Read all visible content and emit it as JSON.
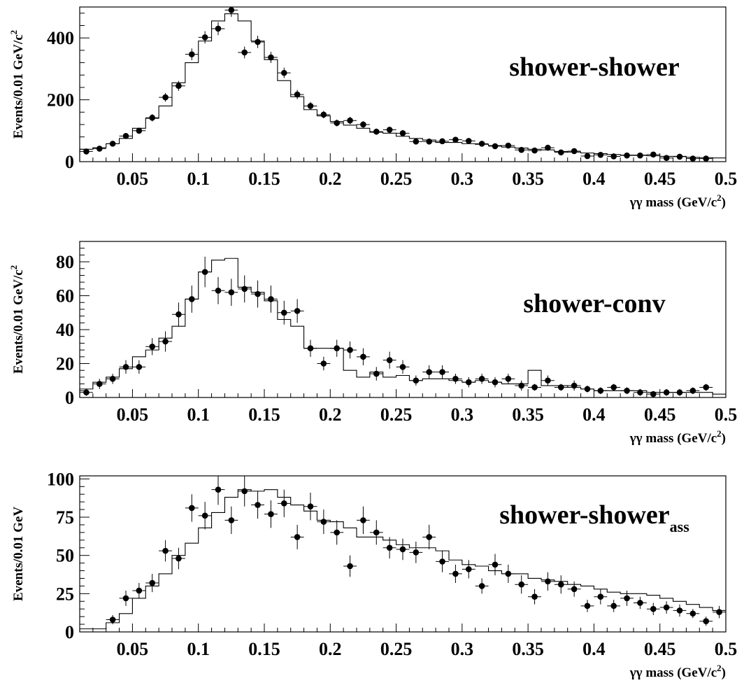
{
  "chart_data": [
    {
      "type": "scatter",
      "title": "shower-shower",
      "title_subscript": "",
      "xlabel": "γγ mass (GeV/c²)",
      "xlabel_main": "γγ mass (GeV/c",
      "xlabel_sup": "2",
      "xlabel_end": ")",
      "ylabel": "Events/0.01 GeV/c²",
      "ylabel_main": "Events/0.01 GeV/c",
      "ylabel_sup": "2",
      "xlim": [
        0.01,
        0.5
      ],
      "ylim": [
        0,
        500
      ],
      "xticks": [
        "0.05",
        "0.1",
        "0.15",
        "0.2",
        "0.25",
        "0.3",
        "0.35",
        "0.4",
        "0.45",
        "0.5"
      ],
      "yticks": [
        "0",
        "200",
        "400"
      ],
      "ytick_values": [
        0,
        200,
        400
      ],
      "series": [
        {
          "kind": "data-points",
          "x": [
            0.015,
            0.025,
            0.035,
            0.045,
            0.055,
            0.065,
            0.075,
            0.085,
            0.095,
            0.105,
            0.115,
            0.125,
            0.135,
            0.145,
            0.155,
            0.165,
            0.175,
            0.185,
            0.195,
            0.205,
            0.215,
            0.225,
            0.235,
            0.245,
            0.255,
            0.265,
            0.275,
            0.285,
            0.295,
            0.305,
            0.315,
            0.325,
            0.335,
            0.345,
            0.355,
            0.365,
            0.375,
            0.385,
            0.395,
            0.405,
            0.415,
            0.425,
            0.435,
            0.445,
            0.455,
            0.465,
            0.475,
            0.485
          ],
          "y": [
            33,
            42,
            58,
            83,
            100,
            142,
            208,
            245,
            347,
            402,
            430,
            490,
            353,
            387,
            337,
            287,
            217,
            180,
            152,
            125,
            133,
            120,
            97,
            103,
            92,
            65,
            65,
            66,
            71,
            67,
            58,
            50,
            52,
            38,
            36,
            45,
            30,
            34,
            18,
            22,
            17,
            20,
            20,
            23,
            12,
            16,
            10,
            10
          ],
          "yerr": [
            6,
            6,
            8,
            9,
            10,
            12,
            14,
            16,
            19,
            20,
            21,
            22,
            19,
            20,
            18,
            17,
            15,
            13,
            12,
            11,
            12,
            11,
            10,
            10,
            10,
            8,
            8,
            8,
            8,
            8,
            8,
            7,
            7,
            6,
            6,
            7,
            5,
            6,
            4,
            5,
            4,
            4,
            4,
            5,
            3,
            4,
            3,
            3
          ]
        },
        {
          "kind": "monte-carlo-histogram",
          "bin_edges": [
            0.01,
            0.02,
            0.03,
            0.04,
            0.05,
            0.06,
            0.07,
            0.08,
            0.09,
            0.1,
            0.11,
            0.12,
            0.13,
            0.14,
            0.15,
            0.16,
            0.17,
            0.18,
            0.19,
            0.2,
            0.21,
            0.22,
            0.23,
            0.24,
            0.25,
            0.26,
            0.27,
            0.28,
            0.29,
            0.3,
            0.31,
            0.32,
            0.33,
            0.34,
            0.35,
            0.36,
            0.37,
            0.38,
            0.39,
            0.4,
            0.41,
            0.42,
            0.43,
            0.44,
            0.45,
            0.46,
            0.47,
            0.48,
            0.49,
            0.5
          ],
          "values": [
            40,
            45,
            58,
            75,
            108,
            140,
            180,
            255,
            320,
            390,
            455,
            478,
            455,
            390,
            330,
            262,
            210,
            168,
            148,
            130,
            118,
            108,
            95,
            92,
            82,
            75,
            70,
            62,
            62,
            58,
            56,
            52,
            47,
            44,
            40,
            38,
            33,
            31,
            28,
            26,
            23,
            21,
            21,
            19,
            17,
            17,
            14,
            13,
            12
          ]
        }
      ]
    },
    {
      "type": "scatter",
      "title": "shower-conv",
      "title_subscript": "",
      "xlabel": "γγ mass (GeV/c²)",
      "xlabel_main": "γγ mass (GeV/c",
      "xlabel_sup": "2",
      "xlabel_end": ")",
      "ylabel": "Events/0.01 GeV/c²",
      "ylabel_main": "Events/0.01 GeV/c",
      "ylabel_sup": "2",
      "xlim": [
        0.01,
        0.5
      ],
      "ylim": [
        0,
        92
      ],
      "xticks": [
        "0.05",
        "0.1",
        "0.15",
        "0.2",
        "0.25",
        "0.3",
        "0.35",
        "0.4",
        "0.45",
        "0.5"
      ],
      "yticks": [
        "0",
        "20",
        "40",
        "60",
        "80"
      ],
      "ytick_values": [
        0,
        20,
        40,
        60,
        80
      ],
      "series": [
        {
          "kind": "data-points",
          "x": [
            0.015,
            0.025,
            0.035,
            0.045,
            0.055,
            0.065,
            0.075,
            0.085,
            0.095,
            0.105,
            0.115,
            0.125,
            0.135,
            0.145,
            0.155,
            0.165,
            0.175,
            0.185,
            0.195,
            0.205,
            0.215,
            0.225,
            0.235,
            0.245,
            0.255,
            0.265,
            0.275,
            0.285,
            0.295,
            0.305,
            0.315,
            0.325,
            0.335,
            0.345,
            0.355,
            0.365,
            0.375,
            0.385,
            0.395,
            0.405,
            0.415,
            0.425,
            0.435,
            0.445,
            0.455,
            0.465,
            0.475,
            0.485
          ],
          "y": [
            3,
            8,
            11,
            18,
            18,
            30,
            33,
            49,
            58,
            74,
            63,
            62,
            64,
            61,
            58,
            50,
            51,
            29,
            20,
            29,
            28,
            24,
            14,
            22,
            18,
            10,
            15,
            15,
            11,
            9,
            11,
            9,
            11,
            7,
            6,
            10,
            6,
            7,
            5,
            4,
            6,
            4,
            3,
            2,
            3,
            3,
            4,
            6
          ],
          "yerr": [
            2,
            3,
            3,
            4,
            4,
            5,
            6,
            7,
            8,
            9,
            8,
            8,
            8,
            8,
            8,
            7,
            7,
            5,
            4,
            5,
            5,
            5,
            4,
            5,
            4,
            3,
            4,
            4,
            3,
            3,
            3,
            3,
            3,
            3,
            2,
            3,
            2,
            3,
            2,
            2,
            2,
            2,
            2,
            1,
            2,
            2,
            2,
            2
          ]
        },
        {
          "kind": "monte-carlo-histogram",
          "bin_edges": [
            0.01,
            0.02,
            0.03,
            0.04,
            0.05,
            0.06,
            0.07,
            0.08,
            0.09,
            0.1,
            0.11,
            0.12,
            0.13,
            0.14,
            0.15,
            0.16,
            0.17,
            0.18,
            0.19,
            0.2,
            0.21,
            0.22,
            0.23,
            0.24,
            0.25,
            0.26,
            0.27,
            0.28,
            0.29,
            0.3,
            0.31,
            0.32,
            0.33,
            0.34,
            0.35,
            0.36,
            0.37,
            0.38,
            0.39,
            0.4,
            0.41,
            0.42,
            0.43,
            0.44,
            0.45,
            0.46,
            0.47,
            0.48,
            0.49,
            0.5
          ],
          "values": [
            5,
            9,
            12,
            17,
            24,
            28,
            35,
            42,
            58,
            74,
            81,
            82,
            65,
            62,
            57,
            46,
            42,
            29,
            29,
            29,
            16,
            12,
            15,
            12,
            13,
            10,
            11,
            11,
            10,
            9,
            10,
            9,
            8,
            8,
            16,
            7,
            7,
            6,
            5,
            4,
            4,
            4,
            4,
            3,
            3,
            3,
            3,
            3,
            2
          ]
        }
      ]
    },
    {
      "type": "scatter",
      "title": "shower-shower",
      "title_subscript": "ass",
      "xlabel": "γγ mass (GeV/c²)",
      "xlabel_main": "γγ mass (GeV/c",
      "xlabel_sup": "2",
      "xlabel_end": ")",
      "ylabel": "Events/0.01 GeV",
      "ylabel_main": "Events/0.01 GeV",
      "ylabel_sup": "",
      "xlim": [
        0.01,
        0.5
      ],
      "ylim": [
        0,
        102
      ],
      "xticks": [
        "0.05",
        "0.1",
        "0.15",
        "0.2",
        "0.25",
        "0.3",
        "0.35",
        "0.4",
        "0.45",
        "0.5"
      ],
      "yticks": [
        "0",
        "25",
        "50",
        "75",
        "100"
      ],
      "ytick_values": [
        0,
        25,
        50,
        75,
        100
      ],
      "series": [
        {
          "kind": "data-points",
          "x": [
            0.035,
            0.045,
            0.055,
            0.065,
            0.075,
            0.085,
            0.095,
            0.105,
            0.115,
            0.125,
            0.135,
            0.145,
            0.155,
            0.165,
            0.175,
            0.185,
            0.195,
            0.205,
            0.215,
            0.225,
            0.235,
            0.245,
            0.255,
            0.265,
            0.275,
            0.285,
            0.295,
            0.305,
            0.315,
            0.325,
            0.335,
            0.345,
            0.355,
            0.365,
            0.375,
            0.385,
            0.395,
            0.405,
            0.415,
            0.425,
            0.435,
            0.445,
            0.455,
            0.465,
            0.475,
            0.485,
            0.495
          ],
          "y": [
            8,
            22,
            27,
            32,
            53,
            48,
            81,
            76,
            93,
            73,
            92,
            83,
            77,
            84,
            62,
            82,
            72,
            65,
            43,
            73,
            65,
            55,
            54,
            52,
            62,
            46,
            38,
            41,
            30,
            44,
            38,
            31,
            23,
            33,
            31,
            28,
            17,
            23,
            17,
            22,
            19,
            15,
            16,
            14,
            12,
            7,
            13
          ],
          "yerr": [
            3,
            5,
            5,
            6,
            7,
            7,
            9,
            9,
            10,
            9,
            10,
            9,
            9,
            9,
            8,
            9,
            8,
            8,
            7,
            9,
            8,
            7,
            7,
            7,
            8,
            7,
            6,
            6,
            5,
            7,
            6,
            6,
            5,
            6,
            6,
            5,
            4,
            5,
            4,
            5,
            4,
            4,
            4,
            4,
            3,
            3,
            4
          ]
        },
        {
          "kind": "monte-carlo-histogram",
          "bin_edges": [
            0.01,
            0.02,
            0.03,
            0.04,
            0.05,
            0.06,
            0.07,
            0.08,
            0.09,
            0.1,
            0.11,
            0.12,
            0.13,
            0.14,
            0.15,
            0.16,
            0.17,
            0.18,
            0.19,
            0.2,
            0.21,
            0.22,
            0.23,
            0.24,
            0.25,
            0.26,
            0.27,
            0.28,
            0.29,
            0.3,
            0.31,
            0.32,
            0.33,
            0.34,
            0.35,
            0.36,
            0.37,
            0.38,
            0.39,
            0.4,
            0.41,
            0.42,
            0.43,
            0.44,
            0.45,
            0.46,
            0.47,
            0.48,
            0.49,
            0.5
          ],
          "values": [
            2,
            2,
            6,
            12,
            22,
            30,
            38,
            50,
            58,
            68,
            78,
            88,
            93,
            92,
            93,
            88,
            83,
            79,
            73,
            72,
            68,
            62,
            62,
            60,
            57,
            55,
            55,
            53,
            47,
            44,
            43,
            40,
            38,
            38,
            35,
            34,
            33,
            31,
            30,
            28,
            26,
            25,
            25,
            24,
            22,
            20,
            18,
            16,
            14
          ]
        }
      ]
    }
  ]
}
